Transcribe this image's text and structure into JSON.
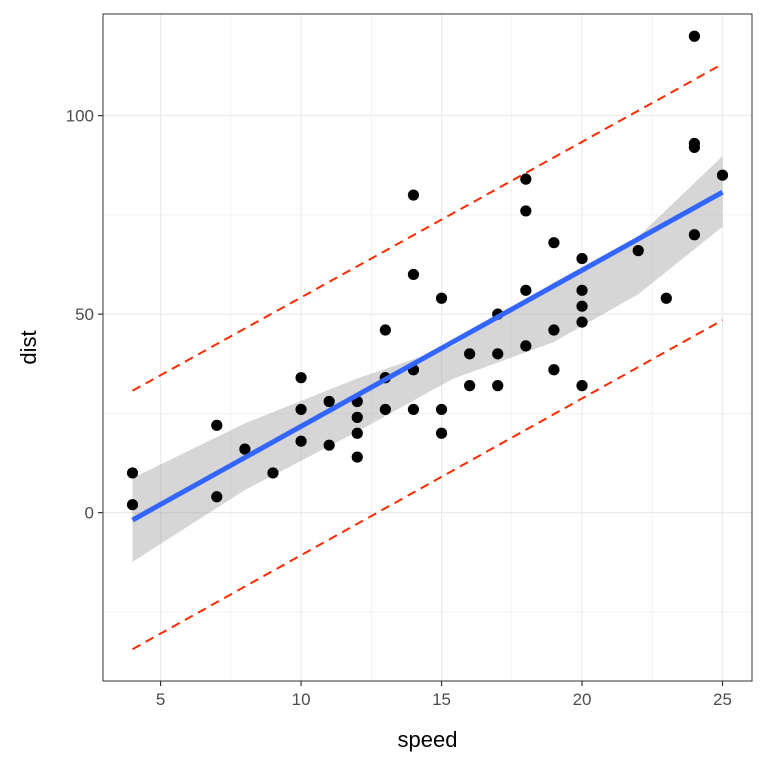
{
  "chart_data": {
    "type": "scatter",
    "title": "",
    "xlabel": "speed",
    "ylabel": "dist",
    "xlim": [
      2.95,
      26.05
    ],
    "ylim": [
      -42.4,
      125.6
    ],
    "grid": true,
    "legend": "none",
    "x_ticks": [
      5,
      10,
      15,
      20,
      25
    ],
    "x_tick_labels": [
      "5",
      "10",
      "15",
      "20",
      "25"
    ],
    "y_ticks": [
      0,
      50,
      100
    ],
    "y_tick_labels": [
      "0",
      "50",
      "100"
    ],
    "points": [
      [
        4,
        2
      ],
      [
        4,
        10
      ],
      [
        7,
        4
      ],
      [
        7,
        22
      ],
      [
        8,
        16
      ],
      [
        9,
        10
      ],
      [
        10,
        18
      ],
      [
        10,
        26
      ],
      [
        10,
        34
      ],
      [
        11,
        17
      ],
      [
        11,
        28
      ],
      [
        12,
        14
      ],
      [
        12,
        20
      ],
      [
        12,
        24
      ],
      [
        12,
        28
      ],
      [
        13,
        26
      ],
      [
        13,
        34
      ],
      [
        13,
        34
      ],
      [
        13,
        46
      ],
      [
        14,
        26
      ],
      [
        14,
        36
      ],
      [
        14,
        60
      ],
      [
        14,
        80
      ],
      [
        15,
        20
      ],
      [
        15,
        26
      ],
      [
        15,
        54
      ],
      [
        16,
        32
      ],
      [
        16,
        40
      ],
      [
        17,
        32
      ],
      [
        17,
        40
      ],
      [
        17,
        50
      ],
      [
        18,
        42
      ],
      [
        18,
        56
      ],
      [
        18,
        76
      ],
      [
        18,
        84
      ],
      [
        19,
        36
      ],
      [
        19,
        46
      ],
      [
        19,
        68
      ],
      [
        20,
        32
      ],
      [
        20,
        48
      ],
      [
        20,
        52
      ],
      [
        20,
        56
      ],
      [
        20,
        64
      ],
      [
        22,
        66
      ],
      [
        23,
        54
      ],
      [
        24,
        70
      ],
      [
        24,
        92
      ],
      [
        24,
        93
      ],
      [
        24,
        120
      ],
      [
        25,
        85
      ]
    ],
    "regression_line": {
      "x": [
        4,
        25
      ],
      "y": [
        -1.85,
        80.73
      ]
    },
    "confidence_band": {
      "x": [
        4,
        8,
        12,
        15.4,
        19,
        22,
        25
      ],
      "lower": [
        -12.4,
        5.7,
        20.4,
        33.7,
        43.0,
        55.0,
        72.0
      ],
      "upper": [
        8.7,
        22.5,
        33.8,
        42.0,
        58.0,
        69.5,
        89.8
      ]
    },
    "prediction_band": {
      "x": [
        4,
        25
      ],
      "lower": [
        -34.4,
        48.5
      ],
      "upper": [
        30.7,
        113.0
      ]
    },
    "colors": {
      "points": "#000000",
      "regression_line": "#3366FF",
      "confidence_band": "#999999",
      "prediction_band": "#FF2A00",
      "grid": "#EBEBEB",
      "panel_border": "#333333",
      "tick_label": "#4d4d4d"
    }
  }
}
